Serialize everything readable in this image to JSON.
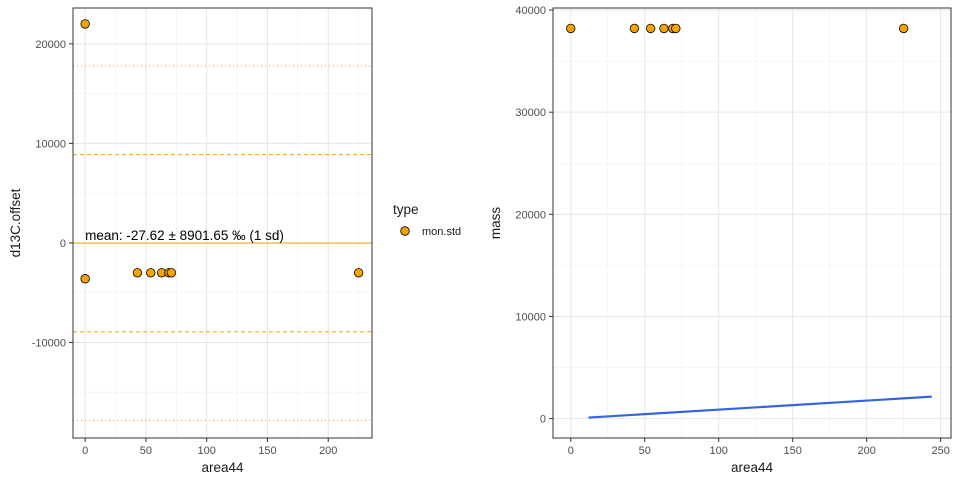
{
  "legend": {
    "title": "type",
    "items": [
      {
        "label": "mon.std",
        "color": "#f5a300"
      }
    ]
  },
  "chart_data": [
    {
      "type": "scatter",
      "xlabel": "area44",
      "ylabel": "d13C.offset",
      "xlim": [
        -10,
        236
      ],
      "ylim": [
        -19600,
        23600
      ],
      "x_ticks": [
        0,
        50,
        100,
        150,
        200
      ],
      "y_ticks": [
        -10000,
        0,
        10000,
        20000
      ],
      "y_tick_labels": [
        "-10000",
        "0",
        "10000",
        "20000"
      ],
      "grid": true,
      "series": [
        {
          "x": [
            0,
            0,
            43,
            54,
            63,
            69,
            71,
            225
          ],
          "y": [
            22000,
            -3600,
            -3000,
            -3000,
            -3000,
            -3000,
            -3000,
            -3000
          ]
        }
      ],
      "hlines": [
        {
          "y": -27.62,
          "style": "solid",
          "color": "#f5a300"
        },
        {
          "y": 8874,
          "style": "dashed",
          "color": "#f5a300"
        },
        {
          "y": -8929,
          "style": "dashed",
          "color": "#f5a300"
        },
        {
          "y": 17776,
          "style": "dotted",
          "color": "#f5a300"
        },
        {
          "y": -17831,
          "style": "dotted",
          "color": "#f5a300"
        }
      ],
      "annotation": {
        "text": "mean: -27.62 ± 8901.65 ‰ (1 sd)",
        "x": 0,
        "y": 300
      }
    },
    {
      "type": "scatter",
      "xlabel": "area44",
      "ylabel": "mass",
      "xlim": [
        -12,
        257
      ],
      "ylim": [
        -1900,
        40200
      ],
      "x_ticks": [
        0,
        50,
        100,
        150,
        200,
        250
      ],
      "y_ticks": [
        0,
        10000,
        20000,
        30000,
        40000
      ],
      "y_tick_labels": [
        "0",
        "10000",
        "20000",
        "30000",
        "40000"
      ],
      "grid": true,
      "series": [
        {
          "x": [
            0,
            43,
            54,
            63,
            69,
            71,
            225
          ],
          "y": [
            38200,
            38200,
            38200,
            38200,
            38200,
            38200,
            38200
          ]
        }
      ],
      "fit_line": {
        "x": [
          12,
          244
        ],
        "y": [
          100,
          2150
        ],
        "color": "#3366dd"
      }
    }
  ]
}
